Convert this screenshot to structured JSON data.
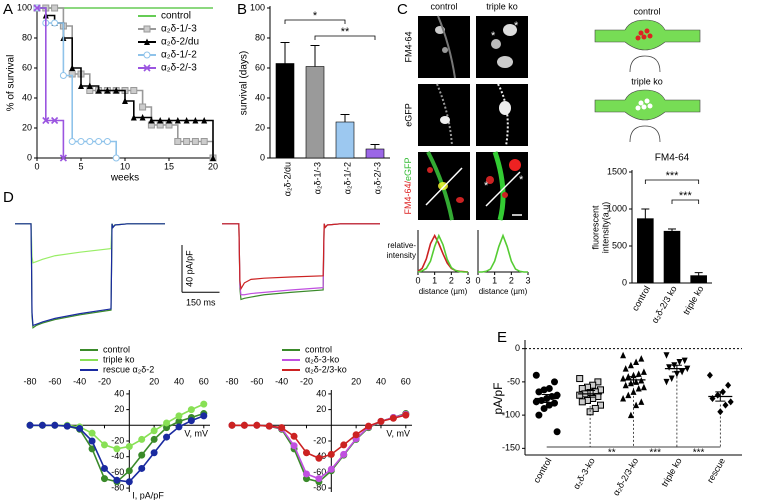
{
  "panels": [
    "A",
    "B",
    "C",
    "D",
    "E"
  ],
  "images": {
    "columns": [
      "control",
      "triple ko"
    ],
    "rows": [
      "FM4-64",
      "eGFP"
    ],
    "merge_label": [
      "FM4-64/",
      "eGFP"
    ],
    "asterisks": [
      "*",
      "*",
      "*",
      "*"
    ]
  },
  "schematic": [
    "control",
    "triple ko"
  ],
  "chart_data": [
    {
      "type": "line",
      "step": true,
      "axes": "box",
      "x_label": "weeks",
      "y_label": "% of survival",
      "legend": "upper right",
      "x": [
        0,
        1,
        2,
        3,
        4,
        5,
        6,
        7,
        8,
        9,
        10,
        11,
        12,
        13,
        14,
        15,
        16,
        17,
        18,
        19,
        20
      ],
      "xlim": [
        0,
        20
      ],
      "xticks": [
        0,
        5,
        10,
        15,
        20
      ],
      "ylim": [
        0,
        100
      ],
      "yticks": [
        0,
        20,
        40,
        60,
        80,
        100
      ],
      "series": [
        {
          "name": "control",
          "color": "#66cc55",
          "marker": "none",
          "values": [
            100,
            100,
            100,
            100,
            100,
            100,
            100,
            100,
            100,
            100,
            100,
            100,
            100,
            100,
            100,
            100,
            100,
            100,
            100,
            100,
            100
          ]
        },
        {
          "name": "α₂δ-1/-3",
          "color": "#999999",
          "marker": "square",
          "values": [
            100,
            100,
            100,
            88,
            56,
            56,
            45,
            45,
            45,
            45,
            45,
            45,
            34,
            22,
            22,
            22,
            11,
            11,
            11,
            11,
            0
          ]
        },
        {
          "name": "α₂δ-2/du",
          "color": "#000000",
          "marker": "triangle",
          "values": [
            100,
            95,
            90,
            80,
            60,
            48,
            48,
            45,
            45,
            45,
            38,
            27,
            27,
            25,
            25,
            25,
            25,
            25,
            25,
            25,
            0
          ]
        },
        {
          "name": "α₂δ-1/-2",
          "color": "#8fc3ea",
          "marker": "circle",
          "values": [
            100,
            90,
            90,
            55,
            11,
            11,
            11,
            11,
            11,
            0,
            null,
            null,
            null,
            null,
            null,
            null,
            null,
            null,
            null,
            null,
            null
          ]
        },
        {
          "name": "α₂δ-2/-3",
          "color": "#9b55e0",
          "marker": "x",
          "values": [
            100,
            25,
            25,
            0,
            null,
            null,
            null,
            null,
            null,
            null,
            null,
            null,
            null,
            null,
            null,
            null,
            null,
            null,
            null,
            null,
            null
          ]
        }
      ]
    },
    {
      "type": "bar",
      "axes": "box",
      "y_label": "survival (days)",
      "categories": [
        "α₂δ-2/du",
        "α₂δ-1/-3",
        "α₂δ-1/-2",
        "α₂δ-2/-3"
      ],
      "values": [
        63,
        61,
        24,
        6
      ],
      "errors": [
        14,
        14,
        5,
        3
      ],
      "colors": [
        "#000000",
        "#9a9a9a",
        "#9cc8f0",
        "#9b66e6"
      ],
      "ylim": [
        0,
        100
      ],
      "yticks": [
        0,
        20,
        40,
        60,
        80,
        100
      ],
      "annotations": [
        "*",
        "**"
      ]
    },
    {
      "type": "line",
      "axes": "box",
      "x_label": "distance (µm)",
      "y_label_lines": [
        "relative-",
        "intensity"
      ],
      "x": [
        0,
        0.25,
        0.5,
        0.75,
        1,
        1.25,
        1.5,
        1.75,
        2,
        2.25,
        2.5,
        2.75,
        3
      ],
      "xlim": [
        0,
        3
      ],
      "xticks": [
        0,
        1,
        2,
        3
      ],
      "ylim": [
        0,
        1.1
      ],
      "series": [
        {
          "color": "#cc2222",
          "marker": "none",
          "values": [
            0.02,
            0.1,
            0.36,
            0.78,
            1,
            0.78,
            0.5,
            0.25,
            0.1,
            0.04,
            0.02,
            0.01,
            0
          ]
        },
        {
          "color": "#55cc33",
          "marker": "none",
          "values": [
            0,
            0.03,
            0.1,
            0.3,
            0.7,
            1,
            0.75,
            0.35,
            0.12,
            0.04,
            0.01,
            0,
            0
          ]
        }
      ]
    },
    {
      "type": "line",
      "axes": "box",
      "x_label": "distance (µm)",
      "x": [
        0,
        0.25,
        0.5,
        0.75,
        1,
        1.25,
        1.5,
        1.75,
        2,
        2.25,
        2.5,
        2.75,
        3
      ],
      "xlim": [
        0,
        3
      ],
      "xticks": [
        0,
        1,
        2,
        3
      ],
      "ylim": [
        0,
        1.1
      ],
      "series": [
        {
          "color": "#55cc33",
          "marker": "none",
          "values": [
            0,
            0,
            0.02,
            0.08,
            0.3,
            0.7,
            1,
            0.7,
            0.3,
            0.08,
            0.02,
            0,
            0
          ]
        }
      ]
    },
    {
      "type": "bar",
      "axes": "box",
      "title": "FM4-64",
      "y_label_lines": [
        "fluorescent",
        "intensity(a.u)"
      ],
      "categories": [
        "control",
        "α₂δ-2/3 ko",
        "triple ko"
      ],
      "values": [
        870,
        700,
        100
      ],
      "errors": [
        130,
        30,
        40
      ],
      "color": "#000000",
      "ylim": [
        0,
        1500
      ],
      "yticks": [
        0,
        500,
        1000,
        1500
      ],
      "annotations": [
        "***",
        "***"
      ]
    },
    {
      "type": "line",
      "axes": "none",
      "x": [
        0,
        64,
        66,
        68,
        72,
        85,
        110,
        160,
        260,
        384,
        386,
        388,
        392,
        400,
        450,
        520,
        600
      ],
      "xlim": [
        0,
        600
      ],
      "ylim": [
        -100,
        10
      ],
      "scale_bar": {
        "y": 40,
        "x": 150,
        "y_label": "40 pA/pF",
        "x_label": "150 ms"
      },
      "series": [
        {
          "color": "#3a8a2a",
          "marker": "none",
          "values": [
            0,
            0,
            -30,
            -78,
            -88,
            -86,
            -84,
            -81,
            -77,
            -73,
            -40,
            0,
            -3,
            -1,
            0,
            0,
            0
          ]
        },
        {
          "color": "#99ee66",
          "marker": "none",
          "values": [
            0,
            0,
            -12,
            -28,
            -33,
            -32,
            -30,
            -27,
            -24,
            -21,
            -10,
            0,
            -2,
            -1,
            0,
            0,
            0
          ]
        },
        {
          "color": "#1a2aa0",
          "marker": "none",
          "values": [
            0,
            0,
            -30,
            -75,
            -86,
            -85,
            -83,
            -80,
            -76,
            -72,
            -40,
            0,
            -3,
            -1,
            0,
            0,
            0
          ]
        }
      ]
    },
    {
      "type": "line",
      "axes": "none",
      "x": [
        0,
        64,
        66,
        68,
        72,
        85,
        110,
        160,
        260,
        384,
        386,
        388,
        392,
        400,
        450,
        520,
        600
      ],
      "xlim": [
        0,
        600
      ],
      "ylim": [
        -100,
        10
      ],
      "series": [
        {
          "color": "#3a8a2a",
          "marker": "none",
          "values": [
            0,
            0,
            -25,
            -55,
            -64,
            -63,
            -62,
            -60,
            -58,
            -56,
            -30,
            0,
            -3,
            -1,
            0,
            0,
            0
          ]
        },
        {
          "color": "#c050e0",
          "marker": "none",
          "values": [
            0,
            0,
            -25,
            -52,
            -60,
            -60,
            -59,
            -58,
            -56,
            -54,
            -28,
            0,
            -3,
            -1,
            0,
            0,
            0
          ]
        },
        {
          "color": "#cc2222",
          "marker": "none",
          "values": [
            0,
            0,
            -25,
            -48,
            -55,
            -50,
            -47,
            -46,
            -45,
            -44,
            -22,
            0,
            -3,
            -1,
            0,
            0,
            0
          ]
        }
      ]
    },
    {
      "type": "line",
      "axes": "cross",
      "x_label": "V, mV",
      "y_label": "I, pA/pF",
      "legend": "top",
      "x": [
        -80,
        -70,
        -60,
        -50,
        -40,
        -30,
        -20,
        -10,
        0,
        10,
        20,
        30,
        40,
        50,
        60
      ],
      "xlim": [
        -80,
        65
      ],
      "xticks": [
        -80,
        -60,
        -40,
        -20,
        20,
        40,
        60
      ],
      "ylim": [
        -85,
        45
      ],
      "yticks": [
        -80,
        -60,
        -40,
        -20,
        20,
        40
      ],
      "series": [
        {
          "name": "control",
          "color": "#3a8a2a",
          "marker": "circle",
          "values": [
            0,
            0,
            0,
            -1,
            -5,
            -30,
            -68,
            -72,
            -58,
            -38,
            -18,
            -3,
            5,
            10,
            15
          ]
        },
        {
          "name": "triple ko",
          "color": "#88e055",
          "marker": "circle",
          "values": [
            0,
            0,
            0,
            0,
            -2,
            -10,
            -25,
            -30,
            -27,
            -18,
            -7,
            3,
            12,
            20,
            27
          ]
        },
        {
          "name": "rescue α₂δ-2",
          "color": "#1a2aa0",
          "marker": "circle",
          "values": [
            0,
            0,
            0,
            -1,
            -4,
            -20,
            -55,
            -70,
            -72,
            -55,
            -35,
            -15,
            -2,
            6,
            12
          ]
        }
      ]
    },
    {
      "type": "line",
      "axes": "cross",
      "x_label": "V, mV",
      "legend": "top",
      "x": [
        -80,
        -70,
        -60,
        -50,
        -40,
        -30,
        -20,
        -10,
        0,
        10,
        20,
        30,
        40,
        50,
        60
      ],
      "xlim": [
        -80,
        65
      ],
      "xticks": [
        -80,
        -60,
        -40,
        -20,
        20,
        40,
        60
      ],
      "ylim": [
        -85,
        45
      ],
      "yticks": [
        -80,
        -60,
        -40,
        -20,
        20,
        40
      ],
      "series": [
        {
          "name": "control",
          "color": "#3a8a2a",
          "marker": "circle",
          "values": [
            0,
            0,
            0,
            -1,
            -5,
            -30,
            -68,
            -72,
            -58,
            -38,
            -18,
            -3,
            5,
            10,
            15
          ]
        },
        {
          "name": "α₂δ-3-ko",
          "color": "#c050e0",
          "marker": "circle",
          "values": [
            0,
            0,
            0,
            -1,
            -4,
            -26,
            -62,
            -68,
            -56,
            -37,
            -17,
            -2,
            5,
            10,
            14
          ]
        },
        {
          "name": "α₂δ-2/3-ko",
          "color": "#cc2222",
          "marker": "circle",
          "values": [
            0,
            0,
            0,
            -1,
            -3,
            -14,
            -35,
            -42,
            -37,
            -25,
            -12,
            -1,
            5,
            9,
            13
          ]
        }
      ]
    },
    {
      "type": "dotplot",
      "axes": "box",
      "y_label": "pA/pF",
      "hline": 0,
      "categories": [
        "control",
        "α₂δ-3-ko",
        "α₂δ-2/3-ko",
        "triple ko",
        "rescue"
      ],
      "markers": [
        "circle",
        "square",
        "triangle",
        "itriangle",
        "diamond"
      ],
      "values": [
        [
          -40,
          -50,
          -60,
          -62,
          -65,
          -70,
          -72,
          -75,
          -78,
          -80,
          -82,
          -85,
          -90,
          -100,
          -125
        ],
        [
          -45,
          -50,
          -55,
          -58,
          -60,
          -62,
          -65,
          -66,
          -68,
          -70,
          -72,
          -75,
          -78,
          -80,
          -85,
          -90,
          -95
        ],
        [
          -10,
          -15,
          -20,
          -25,
          -30,
          -35,
          -38,
          -40,
          -42,
          -45,
          -48,
          -50,
          -52,
          -55,
          -58,
          -60,
          -65,
          -70,
          -75,
          -80,
          -85,
          -100
        ],
        [
          -10,
          -18,
          -20,
          -25,
          -28,
          -30,
          -35,
          -38,
          -45,
          -50
        ],
        [
          -40,
          -55,
          -65,
          -70,
          -75,
          -80,
          -85,
          -95
        ]
      ],
      "means": [
        -75,
        -68,
        -47,
        -30,
        -72
      ],
      "sems": [
        6,
        5,
        5,
        5,
        7
      ],
      "ylim": [
        -160,
        10
      ],
      "yticks": [
        0,
        -50,
        -100,
        -150
      ],
      "annotations": [
        "**",
        "***",
        "***"
      ]
    }
  ]
}
